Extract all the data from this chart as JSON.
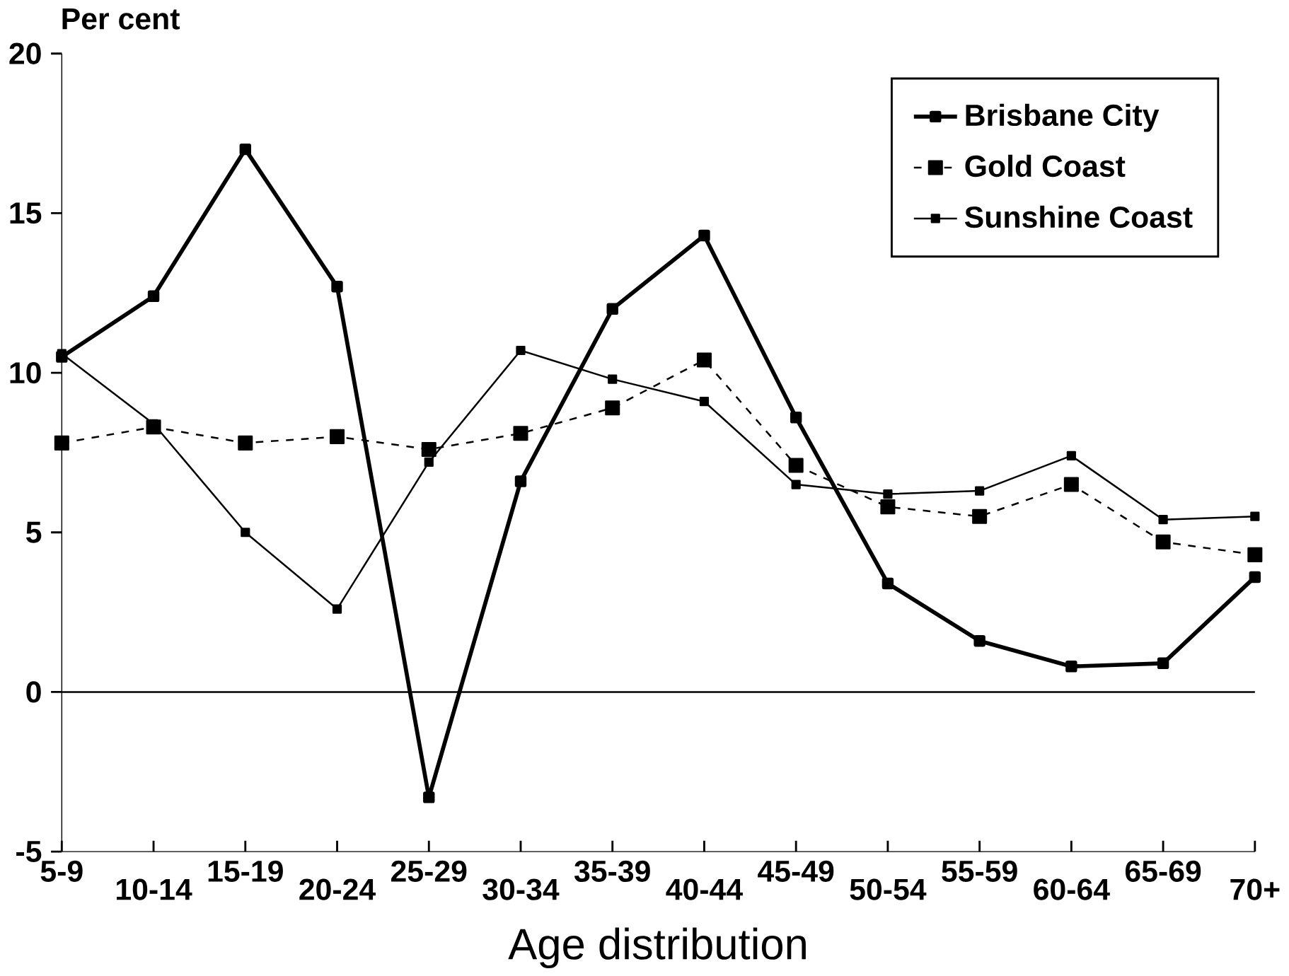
{
  "chart_data": {
    "type": "line",
    "ylabel": "Per cent",
    "xlabel": "Age distribution",
    "categories": [
      "5-9",
      "10-14",
      "15-19",
      "20-24",
      "25-29",
      "30-34",
      "35-39",
      "40-44",
      "45-49",
      "50-54",
      "55-59",
      "60-64",
      "65-69",
      "70+"
    ],
    "series": [
      {
        "name": "Brisbane City",
        "color": "#000000",
        "line_style": "solid",
        "values": [
          10.5,
          12.4,
          17.0,
          12.7,
          -3.3,
          6.6,
          12.0,
          14.3,
          8.6,
          3.4,
          1.6,
          0.8,
          0.9,
          3.6
        ]
      },
      {
        "name": "Gold Coast",
        "color": "#000000",
        "line_style": "dashed",
        "values": [
          7.8,
          8.3,
          7.8,
          8.0,
          7.6,
          8.1,
          8.9,
          10.4,
          7.1,
          5.8,
          5.5,
          6.5,
          4.7,
          4.3
        ]
      },
      {
        "name": "Sunshine Coast",
        "color": "#000000",
        "line_style": "solid",
        "values": [
          10.6,
          8.4,
          5.0,
          2.6,
          7.2,
          10.7,
          9.8,
          9.1,
          6.5,
          6.2,
          6.3,
          7.4,
          5.4,
          5.5
        ]
      }
    ],
    "ylim": [
      -5,
      20
    ],
    "yticks": [
      -5,
      0,
      5,
      10,
      15,
      20
    ],
    "ref_lines": [
      {
        "axis": "y",
        "value": 0,
        "color": "#000000",
        "line_style": "solid"
      }
    ],
    "legend": "top right",
    "marker": "square",
    "grid": false
  }
}
